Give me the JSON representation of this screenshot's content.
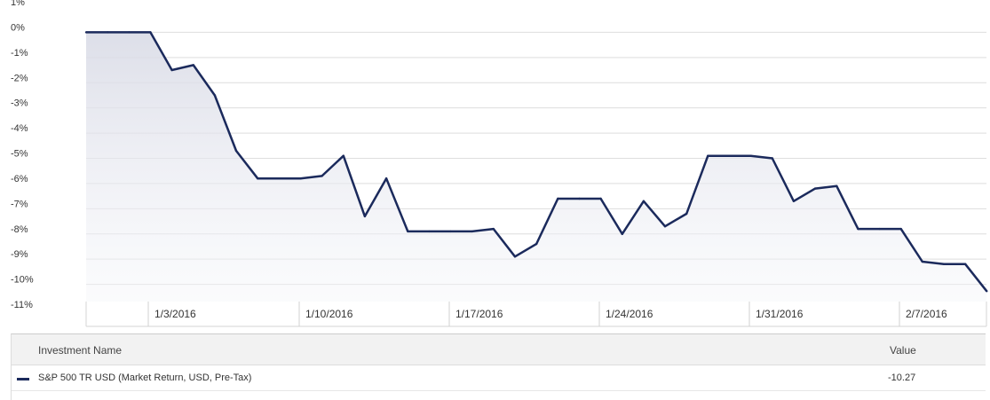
{
  "chart_data": {
    "type": "area",
    "x_ticks": [
      "1/3/2016",
      "1/10/2016",
      "1/17/2016",
      "1/24/2016",
      "1/31/2016",
      "2/7/2016"
    ],
    "y_ticks": [
      "1%",
      "0%",
      "-1%",
      "-2%",
      "-3%",
      "-4%",
      "-5%",
      "-6%",
      "-7%",
      "-8%",
      "-9%",
      "-10%",
      "-11%"
    ],
    "ylim": [
      -11,
      1
    ],
    "grid": true,
    "series": [
      {
        "name": "S&P 500 TR USD (Market Return, USD, Pre-Tax)",
        "color": "#1b2a5c",
        "x": [
          "2015-12-31",
          "2016-01-01",
          "2016-01-02",
          "2016-01-03",
          "2016-01-04",
          "2016-01-05",
          "2016-01-06",
          "2016-01-07",
          "2016-01-08",
          "2016-01-09",
          "2016-01-10",
          "2016-01-11",
          "2016-01-12",
          "2016-01-13",
          "2016-01-14",
          "2016-01-15",
          "2016-01-16",
          "2016-01-17",
          "2016-01-18",
          "2016-01-19",
          "2016-01-20",
          "2016-01-21",
          "2016-01-22",
          "2016-01-23",
          "2016-01-24",
          "2016-01-25",
          "2016-01-26",
          "2016-01-27",
          "2016-01-28",
          "2016-01-29",
          "2016-01-30",
          "2016-01-31",
          "2016-02-01",
          "2016-02-02",
          "2016-02-03",
          "2016-02-04",
          "2016-02-05",
          "2016-02-06",
          "2016-02-07",
          "2016-02-08",
          "2016-02-09",
          "2016-02-10",
          "2016-02-11"
        ],
        "values": [
          0.0,
          0.0,
          0.0,
          0.0,
          -1.5,
          -1.3,
          -2.5,
          -4.7,
          -5.8,
          -5.8,
          -5.8,
          -5.7,
          -4.9,
          -7.3,
          -5.8,
          -7.9,
          -7.9,
          -7.9,
          -7.9,
          -7.8,
          -8.9,
          -8.4,
          -6.6,
          -6.6,
          -6.6,
          -8.0,
          -6.7,
          -7.7,
          -7.2,
          -4.9,
          -4.9,
          -4.9,
          -5.0,
          -6.7,
          -6.2,
          -6.1,
          -7.8,
          -7.8,
          -7.8,
          -9.1,
          -9.2,
          -9.2,
          -10.27
        ]
      }
    ]
  },
  "legend": {
    "header_name": "Investment Name",
    "header_value": "Value",
    "rows": [
      {
        "name": "S&P 500 TR USD (Market Return, USD, Pre-Tax)",
        "value": "-10.27",
        "color": "#1b2a5c"
      }
    ]
  }
}
